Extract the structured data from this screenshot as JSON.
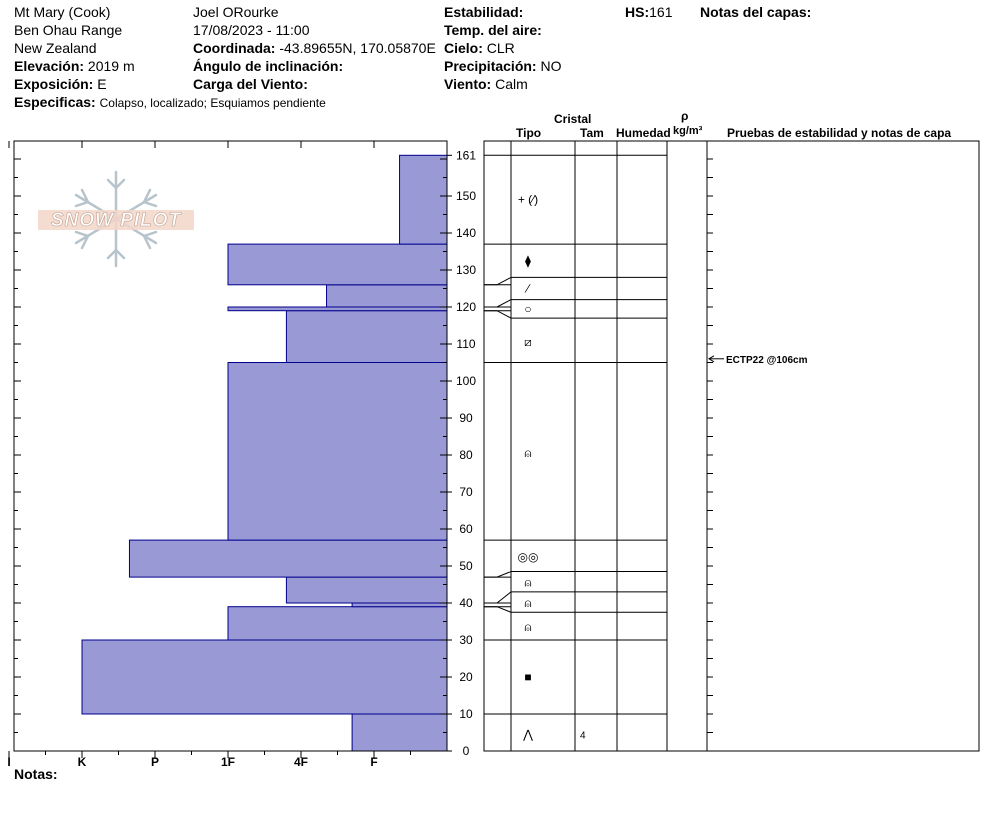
{
  "header": {
    "location": "Mt Mary (Cook)",
    "range": "Ben Ohau Range",
    "country": "New Zealand",
    "elevation_label": "Elevación:",
    "elevation_value": "2019 m",
    "aspect_label": "Exposición:",
    "aspect_value": "E",
    "specifics_label": "Especificas:",
    "specifics_value": "Colapso, localizado; Esquiamos pendiente",
    "observer": "Joel ORourke",
    "datetime": "17/08/2023 - 11:00",
    "coord_label": "Coordinada:",
    "coord_value": "-43.89655N, 170.05870E",
    "slope_label": "Ángulo de inclinación:",
    "wind_load_label": "Carga del Viento:",
    "stability_label": "Estabilidad:",
    "air_temp_label": "Temp. del aire:",
    "sky_label": "Cielo:",
    "sky_value": "CLR",
    "precip_label": "Precipitación:",
    "precip_value": "NO",
    "wind_label": "Viento:",
    "wind_value": "Calm",
    "hs_label": "HS:",
    "hs_value": "161",
    "layer_notes_label": "Notas del capas:",
    "notes_label": "Notas:"
  },
  "logo_text": "SNOW PILOT",
  "columns": {
    "crystal": "Cristal",
    "type": "Tipo",
    "size": "Tam",
    "moisture": "Humedad",
    "rho": "ρ",
    "density_unit": "kg/m³",
    "tests": "Pruebas de estabilidad y notas de capa"
  },
  "chart_data": {
    "type": "bar",
    "orientation": "horizontal",
    "title": "",
    "x_axis": {
      "labels": [
        "I",
        "K",
        "P",
        "1F",
        "4F",
        "F"
      ],
      "hardness_values": {
        "I": 6,
        "K": 5,
        "P": 4,
        "1F": 3,
        "4F": 2,
        "F": 1
      }
    },
    "y_axis": {
      "range": [
        0,
        161
      ],
      "ticks": [
        0,
        10,
        20,
        30,
        40,
        50,
        60,
        70,
        80,
        90,
        100,
        110,
        120,
        130,
        140,
        150,
        161
      ]
    },
    "layers": [
      {
        "bottom": 0,
        "top": 10,
        "hardness": 1.3
      },
      {
        "bottom": 10,
        "top": 30,
        "hardness": 5.0
      },
      {
        "bottom": 30,
        "top": 39,
        "hardness": 3.0
      },
      {
        "bottom": 39,
        "top": 40,
        "hardness": 1.3
      },
      {
        "bottom": 40,
        "top": 47,
        "hardness": 2.2
      },
      {
        "bottom": 47,
        "top": 57,
        "hardness": 4.35
      },
      {
        "bottom": 57,
        "top": 105,
        "hardness": 3.0
      },
      {
        "bottom": 105,
        "top": 119,
        "hardness": 2.2
      },
      {
        "bottom": 119,
        "top": 120,
        "hardness": 3.0
      },
      {
        "bottom": 120,
        "top": 126,
        "hardness": 1.65
      },
      {
        "bottom": 126,
        "top": 137,
        "hardness": 3.0
      },
      {
        "bottom": 137,
        "top": 161,
        "hardness": 0.65
      }
    ],
    "profile_lines": [
      10,
      30,
      37.5,
      43,
      48.5,
      57,
      105,
      117,
      122,
      128,
      137,
      161
    ],
    "connectors": [
      {
        "to": 37.5,
        "from": 39
      },
      {
        "to": 43,
        "from": 40
      },
      {
        "to": 48.5,
        "from": 47
      },
      {
        "to": 117,
        "from": 119
      },
      {
        "to": 122,
        "from": 120
      },
      {
        "to": 128,
        "from": 126
      }
    ],
    "crystals": [
      {
        "depth": 4.5,
        "symbol": "⋀",
        "size": "4"
      },
      {
        "depth": 20,
        "symbol": "■",
        "size": ""
      },
      {
        "depth": 33.5,
        "symbol": "⍝",
        "size": ""
      },
      {
        "depth": 40,
        "symbol": "⍝",
        "size": ""
      },
      {
        "depth": 45.5,
        "symbol": "⍝",
        "size": ""
      },
      {
        "depth": 52.5,
        "symbol": "◎◎",
        "size": ""
      },
      {
        "depth": 80.5,
        "symbol": "⍝",
        "size": ""
      },
      {
        "depth": 110.5,
        "symbol": "⧄",
        "size": ""
      },
      {
        "depth": 119.5,
        "symbol": "○",
        "size": ""
      },
      {
        "depth": 125,
        "symbol": "∕",
        "size": ""
      },
      {
        "depth": 132.5,
        "symbol": "⧫",
        "size": ""
      },
      {
        "depth": 149,
        "symbol": "+ (∕)",
        "size": ""
      }
    ],
    "tests": [
      {
        "depth": 106,
        "label": "ECTP22 @106cm"
      }
    ],
    "colors": {
      "bar_fill": "#9999d6",
      "bar_stroke": "#00008b"
    }
  }
}
